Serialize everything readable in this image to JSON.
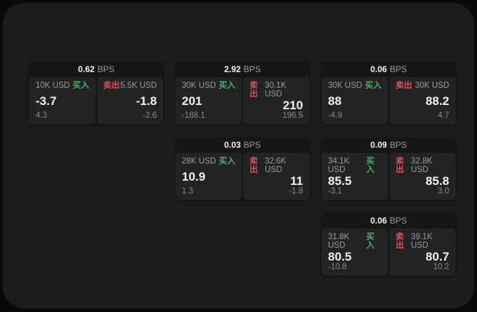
{
  "labels": {
    "bps_suffix": "BPS",
    "buy": "买入",
    "sell": "卖出"
  },
  "colors": {
    "background": "#0a0a0a",
    "panel": "#1c1c1c",
    "card": "#161616",
    "pane": "#232323",
    "buy_green": "#4caf6e",
    "sell_red": "#d8525f",
    "text_primary": "#f2f2f2",
    "text_secondary": "#9c9c9c",
    "text_muted": "#8a8a8a"
  },
  "cards": [
    {
      "bps": "0.62",
      "buy": {
        "amount": "10K USD",
        "price": "-3.7",
        "sub": "4.3"
      },
      "sell": {
        "amount": "5.5K USD",
        "price": "-1.8",
        "sub": "-2.6"
      }
    },
    {
      "bps": "2.92",
      "buy": {
        "amount": "30K USD",
        "price": "201",
        "sub": "-188.1"
      },
      "sell": {
        "amount": "30.1K USD",
        "price": "210",
        "sub": "196.5"
      }
    },
    {
      "bps": "0.06",
      "buy": {
        "amount": "30K USD",
        "price": "88",
        "sub": "-4.9"
      },
      "sell": {
        "amount": "30K USD",
        "price": "88.2",
        "sub": "4.7"
      }
    },
    {
      "bps": "0.03",
      "buy": {
        "amount": "28K USD",
        "price": "10.9",
        "sub": "1.3"
      },
      "sell": {
        "amount": "32.6K USD",
        "price": "11",
        "sub": "-1.8"
      }
    },
    {
      "bps": "0.09",
      "buy": {
        "amount": "34.1K USD",
        "price": "85.5",
        "sub": "-3.1"
      },
      "sell": {
        "amount": "32.8K USD",
        "price": "85.8",
        "sub": "3.0"
      }
    },
    {
      "bps": "0.06",
      "buy": {
        "amount": "31.8K USD",
        "price": "80.5",
        "sub": "-10.8"
      },
      "sell": {
        "amount": "39.1K USD",
        "price": "80.7",
        "sub": "10.2"
      }
    }
  ]
}
